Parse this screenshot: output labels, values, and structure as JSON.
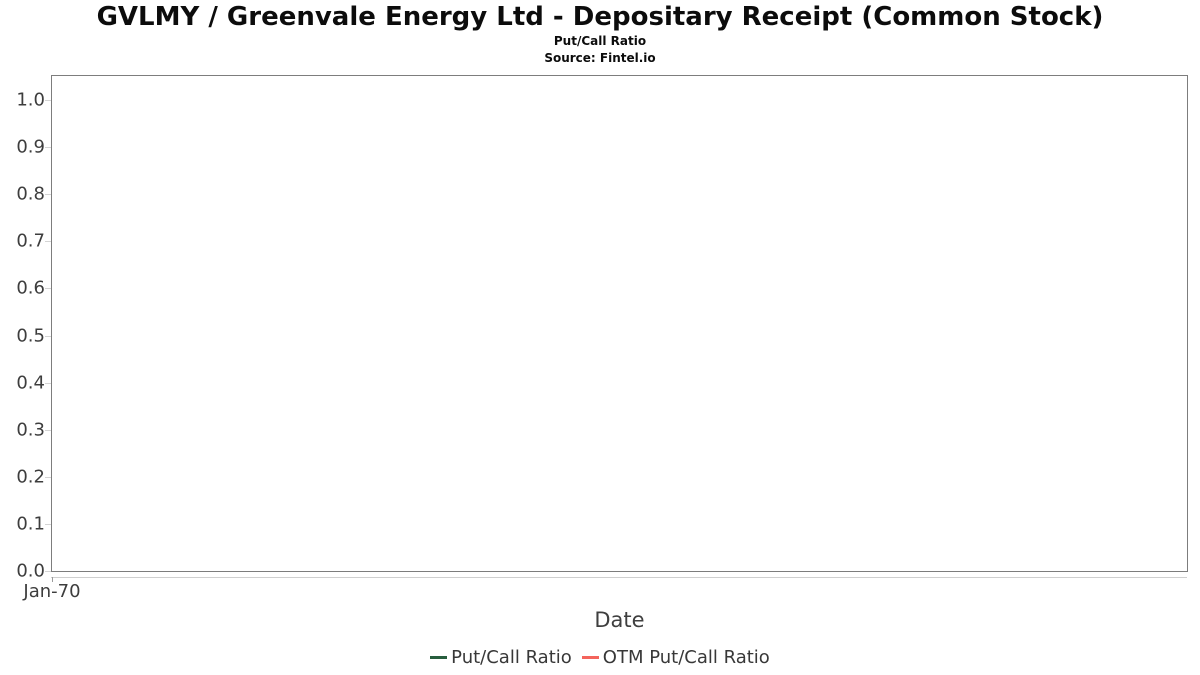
{
  "chart_data": {
    "type": "line",
    "title": "GVLMY / Greenvale Energy Ltd - Depositary Receipt (Common Stock)",
    "subtitle": "Put/Call Ratio",
    "source": "Source: Fintel.io",
    "xlabel": "Date",
    "ylabel": "",
    "x_tick_labels": [
      "Jan-70"
    ],
    "y_ticks": [
      0.0,
      0.1,
      0.2,
      0.3,
      0.4,
      0.5,
      0.6,
      0.7,
      0.8,
      0.9,
      1.0
    ],
    "y_tick_labels": [
      "0.0",
      "0.1",
      "0.2",
      "0.3",
      "0.4",
      "0.5",
      "0.6",
      "0.7",
      "0.8",
      "0.9",
      "1.0"
    ],
    "ylim": [
      0.0,
      1.0
    ],
    "grid": true,
    "legend_position": "bottom",
    "series": [
      {
        "name": "Put/Call Ratio",
        "color": "#275e3e",
        "values": []
      },
      {
        "name": "OTM Put/Call Ratio",
        "color": "#f4645c",
        "values": []
      }
    ]
  }
}
